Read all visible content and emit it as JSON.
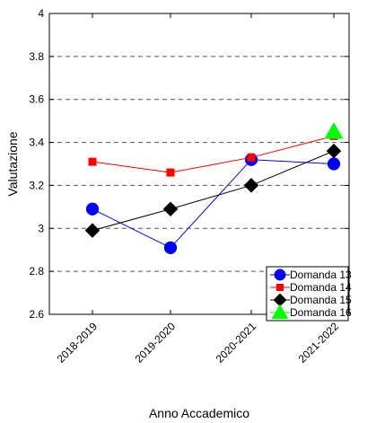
{
  "chart_data": {
    "type": "line",
    "categories": [
      "2018-2019",
      "2019-2020",
      "2020-2021",
      "2021-2022"
    ],
    "xlabel": "Anno Accademico",
    "ylabel": "Valutazione",
    "ylim": [
      2.6,
      4
    ],
    "yticks": [
      "2.6",
      "2.8",
      "3",
      "3.2",
      "3.4",
      "3.6",
      "3.8",
      "4"
    ],
    "grid": "horizontal dashed",
    "legend_position": "bottom-right",
    "series": [
      {
        "name": "Domanda 13",
        "color": "#0000ff",
        "marker": "circle",
        "values": [
          3.09,
          2.91,
          3.32,
          3.3
        ]
      },
      {
        "name": "Domanda 14",
        "color": "#ff0000",
        "marker": "square",
        "values": [
          3.31,
          3.26,
          3.33,
          3.43
        ]
      },
      {
        "name": "Domanda 15",
        "color": "#000000",
        "marker": "diamond",
        "values": [
          2.99,
          3.09,
          3.2,
          3.36
        ]
      },
      {
        "name": "Domanda 16",
        "color": "#00ff00",
        "marker": "triangle",
        "values": [
          null,
          null,
          null,
          3.45
        ]
      }
    ]
  }
}
